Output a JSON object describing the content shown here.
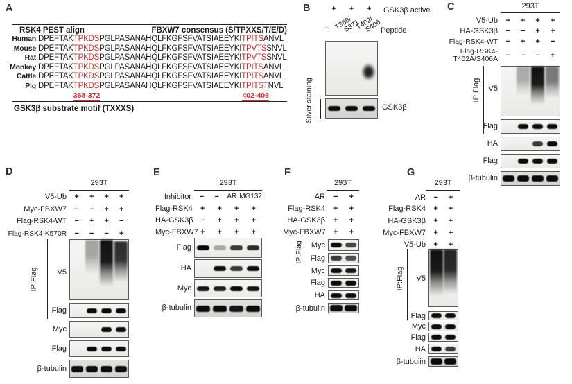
{
  "colors": {
    "accent_red": "#c9302c",
    "band_black": "#0c0c0c"
  },
  "panel_a": {
    "letter": "A",
    "header_left": "RSK4 PEST align",
    "header_right": "FBXW7 consensus (S/TPXXS/T/E/D)",
    "rows": [
      {
        "species": "Human",
        "prefix": "DPEFTAK",
        "motif1": "TPKDS",
        "mid": "PGLPASANAHQLFKGFSFVATSIAEEYKI",
        "motif2": "TPITS",
        "suffix": "ANVL"
      },
      {
        "species": "Mouse",
        "prefix": "DPEFTAK",
        "motif1": "TPKDS",
        "mid": "PGLPASANAHQLFKGFSFVATSIAEEYKI",
        "motif2": "TPVTS",
        "suffix": "SNVL"
      },
      {
        "species": "Rat",
        "prefix": "DPEFTAK",
        "motif1": "TPKDS",
        "mid": "PGLPASANAHQLFKGFSFVATSIAEEYKI",
        "motif2": "TPVTS",
        "suffix": "SNVL"
      },
      {
        "species": "Monkey",
        "prefix": "DPEFTAK",
        "motif1": "TPKDS",
        "mid": "PGLPASANAHQLFKGFSFVATSIAEEYKI",
        "motif2": "TPITS",
        "suffix": "ANVL"
      },
      {
        "species": "Cattle",
        "prefix": "DPEFTAK",
        "motif1": "TPKDS",
        "mid": "PGLPASANAHQLFKGFSFVATSIAEEYKI",
        "motif2": "TPITS",
        "suffix": "ANVL"
      },
      {
        "species": "Pig",
        "prefix": "DPEFTAK",
        "motif1": "TPKDS",
        "mid": "PGLPASANAHQLFKGFSFVATSIAEEYKI",
        "motif2": "TPITS",
        "suffix": "TNVL"
      }
    ],
    "range1": "368-372",
    "range2": "402-406",
    "footer": "GSK3β substrate motif (TXXXS)"
  },
  "panel_b": {
    "letter": "B",
    "active_values": [
      "+",
      "+",
      "+"
    ],
    "active_label": "GSK3β active",
    "lane1": "−",
    "peptide2": [
      "T368/",
      "S371"
    ],
    "peptide3": [
      "T402/",
      "S406"
    ],
    "peptide_label": "Peptide",
    "silver_label": "Silver staining",
    "gsk_label": "GSK3β",
    "autorad_smear": [
      [
        0
      ],
      [
        0
      ],
      [
        0.92,
        28,
        46,
        "blob"
      ]
    ],
    "silver_bands": [
      1,
      1,
      1
    ]
  },
  "panel_c": {
    "letter": "C",
    "cell_line": "293T",
    "ip_label": "IP:Flag",
    "rows": [
      {
        "label": "V5-Ub",
        "values": [
          "+",
          "+",
          "+",
          "+"
        ]
      },
      {
        "label": "HA-GSK3β",
        "values": [
          "−",
          "−",
          "+",
          "+"
        ]
      },
      {
        "label": "Flag-RSK4-WT",
        "values": [
          "−",
          "+",
          "+",
          "−"
        ]
      },
      {
        "label": "Flag-RSK4-",
        "label2": "T402A/S406A",
        "values": [
          "−",
          "−",
          "−",
          "+"
        ]
      }
    ],
    "blots": [
      {
        "label": "V5",
        "smear": [
          [
            0
          ],
          [
            0.32,
            0,
            62
          ],
          [
            1,
            0,
            80
          ],
          [
            0.55,
            0,
            68
          ]
        ]
      },
      {
        "label": "Flag",
        "bands": [
          0,
          1,
          1,
          1
        ]
      },
      {
        "label": "HA",
        "bands": [
          0,
          0,
          0.8,
          1
        ]
      },
      {
        "label": "Flag",
        "bands": [
          0,
          1,
          1,
          1
        ]
      },
      {
        "label": "β-tubulin",
        "bands": [
          1,
          1,
          1,
          1
        ]
      }
    ]
  },
  "panel_d": {
    "letter": "D",
    "cell_line": "293T",
    "ip_label": "IP:Flag",
    "rows": [
      {
        "label": "V5-Ub",
        "values": [
          "+",
          "+",
          "+",
          "+"
        ]
      },
      {
        "label": "Myc-FBXW7",
        "values": [
          "−",
          "−",
          "+",
          "+"
        ]
      },
      {
        "label": "Flag-RSK4-WT",
        "values": [
          "−",
          "+",
          "+",
          "−"
        ]
      },
      {
        "label": "Flag-RSK4-K570R",
        "values": [
          "−",
          "−",
          "−",
          "+"
        ]
      }
    ],
    "blots": [
      {
        "label": "V5",
        "smear": [
          [
            0
          ],
          [
            0.35,
            0,
            60
          ],
          [
            1,
            0,
            82
          ],
          [
            0.88,
            2,
            72
          ]
        ]
      },
      {
        "label": "Flag",
        "bands": [
          0,
          1,
          1,
          1
        ]
      },
      {
        "label": "Myc",
        "bands": [
          0,
          0,
          1,
          1
        ]
      },
      {
        "label": "Flag",
        "bands": [
          0,
          1,
          1,
          1
        ]
      },
      {
        "label": "β-tubulin",
        "bands": [
          1,
          1,
          1,
          1
        ]
      }
    ]
  },
  "panel_e": {
    "letter": "E",
    "cell_line": "293T",
    "rows": [
      {
        "label": "Inhibitor",
        "values": [
          "−",
          "−",
          "AR",
          "MG132"
        ]
      },
      {
        "label": "Flag-RSK4",
        "values": [
          "+",
          "+",
          "+",
          "+"
        ]
      },
      {
        "label": "HA-GSK3β",
        "values": [
          "−",
          "+",
          "+",
          "+"
        ]
      },
      {
        "label": "Myc-FBXW7",
        "values": [
          "+",
          "+",
          "+",
          "+"
        ]
      }
    ],
    "blots": [
      {
        "label": "Flag",
        "bands": [
          1,
          0.3,
          0.8,
          0.85
        ]
      },
      {
        "label": "HA",
        "bands": [
          0,
          1,
          0.8,
          1
        ]
      },
      {
        "label": "Myc",
        "bands": [
          0.95,
          0.9,
          1,
          0.95
        ]
      },
      {
        "label": "β-tubulin",
        "bands": [
          1,
          1,
          0.95,
          1
        ]
      }
    ]
  },
  "panel_f": {
    "letter": "F",
    "cell_line": "293T",
    "ip_label": "IP:Flag",
    "rows": [
      {
        "label": "AR",
        "values": [
          "−",
          "+"
        ]
      },
      {
        "label": "Flag-RSK4",
        "values": [
          "+",
          "+"
        ]
      },
      {
        "label": "HA-GSK3β",
        "values": [
          "+",
          "+"
        ]
      },
      {
        "label": "Myc-FBXW7",
        "values": [
          "+",
          "+"
        ]
      }
    ],
    "blots": [
      {
        "label": "Myc",
        "bands": [
          1,
          0.75
        ]
      },
      {
        "label": "Flag",
        "bands": [
          0.8,
          0.7
        ]
      },
      {
        "label": "Myc",
        "bands": [
          1,
          0.95
        ]
      },
      {
        "label": "Flag",
        "bands": [
          1,
          1
        ]
      },
      {
        "label": "HA",
        "bands": [
          1,
          1
        ]
      },
      {
        "label": "β-tubulin",
        "bands": [
          1,
          1
        ]
      }
    ]
  },
  "panel_g": {
    "letter": "G",
    "cell_line": "293T",
    "ip_label": "IP:Flag",
    "rows": [
      {
        "label": "AR",
        "values": [
          "−",
          "+"
        ]
      },
      {
        "label": "Flag-RSK4",
        "values": [
          "+",
          "+"
        ]
      },
      {
        "label": "HA-GSK3β",
        "values": [
          "+",
          "+"
        ]
      },
      {
        "label": "Myc-FBXW7",
        "values": [
          "+",
          "+"
        ]
      },
      {
        "label": "V5-Ub",
        "values": [
          "+",
          "+"
        ]
      }
    ],
    "blots": [
      {
        "label": "V5",
        "smear": [
          [
            1,
            0,
            85
          ],
          [
            0.92,
            0,
            82
          ]
        ]
      },
      {
        "label": "Flag",
        "bands": [
          1,
          1
        ]
      },
      {
        "label": "Myc",
        "bands": [
          1,
          1
        ]
      },
      {
        "label": "Flag",
        "bands": [
          1,
          1
        ]
      },
      {
        "label": "HA",
        "bands": [
          1,
          0.8
        ]
      },
      {
        "label": "β-tubulin",
        "bands": [
          1,
          1
        ]
      }
    ]
  }
}
